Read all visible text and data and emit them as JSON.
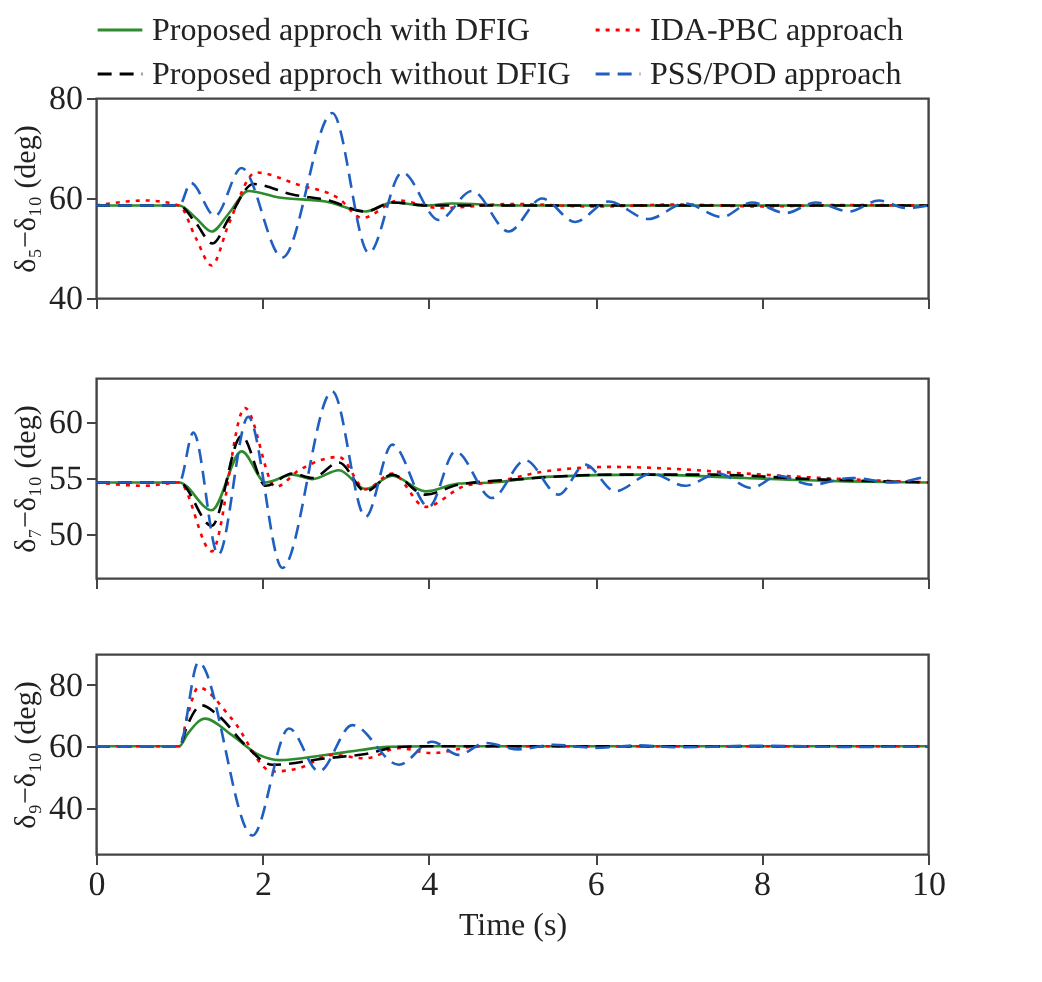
{
  "chart_data": [
    {
      "type": "line",
      "xlabel": null,
      "ylabel": "δ₅−δ₁₀ (deg)",
      "xlim": [
        0,
        10
      ],
      "xticks": [
        0,
        2,
        4,
        6,
        8,
        10
      ],
      "ylim": [
        40,
        80
      ],
      "yticks": [
        40,
        60,
        80
      ],
      "grid": false,
      "legend": "top",
      "tick_labels": "y",
      "series": [
        {
          "name": "Proposed approch with DFIG",
          "color": "#2e8b2e",
          "line_style": "solid",
          "x": [
            0,
            1,
            1.2,
            1.39,
            1.6,
            1.83,
            2.2,
            2.76,
            3.24,
            3.56,
            3.96,
            4.28,
            5,
            10
          ],
          "values": [
            58.5,
            58.5,
            56,
            53.3,
            57,
            61.4,
            60.1,
            59.3,
            57.3,
            59.1,
            58.5,
            58.9,
            58.5,
            58.5
          ]
        },
        {
          "name": "IDA-PBC approach",
          "color": "#ff0000",
          "line_style": "dotted",
          "x": [
            0,
            0.6,
            1,
            1.2,
            1.39,
            1.6,
            1.92,
            2.44,
            2.92,
            3.2,
            3.64,
            4.12,
            5,
            6,
            7,
            8,
            9,
            10
          ],
          "values": [
            58.5,
            59.5,
            58.5,
            52,
            46.5,
            55,
            65.1,
            62.6,
            59.9,
            56,
            59.5,
            58,
            58.8,
            58.3,
            58.7,
            58.3,
            58.6,
            58.5
          ]
        },
        {
          "name": "Proposed approch without DFIG",
          "color": "#000000",
          "line_style": "dashed",
          "x": [
            0,
            1,
            1.2,
            1.4,
            1.6,
            1.89,
            2.36,
            2.8,
            3.24,
            3.56,
            4,
            10
          ],
          "values": [
            58.5,
            58.5,
            55,
            50.9,
            56,
            62.8,
            60.7,
            59.5,
            57.3,
            59.1,
            58.5,
            58.5
          ]
        },
        {
          "name": "PSS/POD approach",
          "color": "#1f5fbf",
          "line_style": "dashed",
          "x": [
            0,
            1,
            1.14,
            1.43,
            1.75,
            2.24,
            2.84,
            3.28,
            3.68,
            4.12,
            4.52,
            4.96,
            5.36,
            5.76,
            6.16,
            6.64,
            7.08,
            7.52,
            7.88,
            8.29,
            8.65,
            9.05,
            9.41,
            9.73,
            10
          ],
          "values": [
            58.5,
            58.5,
            63,
            56.4,
            66,
            48.1,
            77,
            49,
            65.1,
            55.6,
            61.4,
            53.3,
            59.9,
            55.2,
            59.3,
            55.8,
            58.9,
            56.2,
            59.1,
            57,
            59.1,
            57.3,
            59.5,
            58,
            58.5
          ]
        }
      ]
    },
    {
      "type": "line",
      "ylabel": "δ₇−δ₁₀ (deg)",
      "xlim": [
        0,
        10
      ],
      "xticks": [
        0,
        2,
        4,
        6,
        8,
        10
      ],
      "ylim": [
        46,
        64
      ],
      "yticks": [
        50,
        55,
        60
      ],
      "grid": false,
      "tick_labels": "y",
      "series": [
        {
          "color": "#2e8b2e",
          "line_style": "solid",
          "x": [
            0,
            1,
            1.39,
            1.75,
            2.04,
            2.36,
            2.6,
            2.92,
            3.24,
            3.56,
            3.96,
            4.36,
            4.76,
            5.4,
            6.6,
            7.8,
            9,
            10
          ],
          "values": [
            54.6,
            54.6,
            52.1,
            57.4,
            54.6,
            55.3,
            54.9,
            55.7,
            54,
            55.2,
            53.8,
            54.5,
            54.6,
            55.1,
            55.3,
            55,
            54.7,
            54.6
          ]
        },
        {
          "color": "#ff0000",
          "line_style": "dotted",
          "x": [
            0,
            0.6,
            1,
            1.39,
            1.79,
            2.16,
            2.44,
            2.92,
            3.24,
            3.56,
            3.96,
            4.44,
            4.76,
            5.4,
            6.2,
            7,
            7.8,
            9,
            10
          ],
          "values": [
            54.6,
            54.3,
            54.6,
            48.4,
            61.3,
            54.2,
            55.7,
            56.9,
            54,
            55.4,
            52.4,
            54.3,
            54.6,
            55.6,
            56,
            55.8,
            55.4,
            54.9,
            54.6
          ]
        },
        {
          "color": "#000000",
          "line_style": "dashed",
          "x": [
            0,
            1,
            1.39,
            1.75,
            2.04,
            2.36,
            2.6,
            2.92,
            3.24,
            3.56,
            3.96,
            4.36,
            5.1,
            6.2,
            7.4,
            8.6,
            10
          ],
          "values": [
            54.6,
            54.6,
            50.7,
            58.8,
            54.3,
            55.4,
            55,
            56.4,
            53.8,
            55.3,
            53.5,
            54.4,
            54.9,
            55.3,
            55.3,
            54.9,
            54.6
          ]
        },
        {
          "color": "#1f5fbf",
          "line_style": "dashed",
          "x": [
            0,
            1,
            1.17,
            1.47,
            1.83,
            2.24,
            2.84,
            3.24,
            3.56,
            4,
            4.32,
            4.76,
            5.16,
            5.56,
            5.88,
            6.24,
            6.68,
            7.08,
            7.48,
            7.88,
            8.2,
            8.6,
            9.09,
            9.57,
            10
          ],
          "values": [
            54.6,
            54.6,
            59.1,
            48.1,
            60.5,
            46.9,
            62.8,
            51.5,
            58,
            52.4,
            57.4,
            53.2,
            56.6,
            53.5,
            56.2,
            53.8,
            55.4,
            54.3,
            55.4,
            54.1,
            55.2,
            54.4,
            55,
            54.6,
            55.2
          ]
        }
      ]
    },
    {
      "type": "line",
      "xlabel": "Time (s)",
      "ylabel": "δ₉−δ₁₀ (deg)",
      "xlim": [
        0,
        10
      ],
      "xticks": [
        0,
        2,
        4,
        6,
        8,
        10
      ],
      "ylim": [
        25,
        90
      ],
      "yticks": [
        40,
        60,
        80
      ],
      "grid": false,
      "series": [
        {
          "color": "#2e8b2e",
          "line_style": "solid",
          "x": [
            0,
            1,
            1.1,
            1.31,
            1.63,
            1.96,
            2.2,
            2.76,
            3.16,
            3.5,
            4,
            10
          ],
          "values": [
            60,
            60,
            64,
            69,
            63.7,
            57.2,
            55.5,
            57.2,
            58.7,
            59.8,
            60,
            60
          ]
        },
        {
          "color": "#ff0000",
          "line_style": "dotted",
          "x": [
            0,
            1,
            1.1,
            1.23,
            1.63,
            2.12,
            2.44,
            2.84,
            3.24,
            3.64,
            4.04,
            4.6,
            10
          ],
          "values": [
            60,
            60,
            70,
            79.1,
            69,
            51.8,
            52.9,
            57.2,
            56.1,
            59.4,
            57.8,
            60,
            60
          ]
        },
        {
          "color": "#000000",
          "line_style": "dashed",
          "x": [
            0,
            1,
            1.1,
            1.27,
            1.47,
            1.79,
            2.12,
            2.76,
            3.24,
            3.64,
            4,
            10
          ],
          "values": [
            60,
            60,
            67,
            73.3,
            70,
            60.5,
            54,
            56.1,
            57.5,
            59.8,
            60,
            60
          ]
        },
        {
          "color": "#1f5fbf",
          "line_style": "dashed",
          "x": [
            0,
            1,
            1.23,
            1.88,
            2.32,
            2.68,
            3.08,
            3.64,
            4.04,
            4.36,
            4.68,
            5.08,
            5.5,
            6,
            6.5,
            7,
            8,
            9,
            10
          ],
          "values": [
            60,
            60,
            87.3,
            31,
            65.8,
            51.8,
            66.9,
            54,
            61.5,
            57.2,
            61.1,
            59,
            60.5,
            59.5,
            60.3,
            59.7,
            60.2,
            59.8,
            60
          ]
        }
      ]
    }
  ]
}
